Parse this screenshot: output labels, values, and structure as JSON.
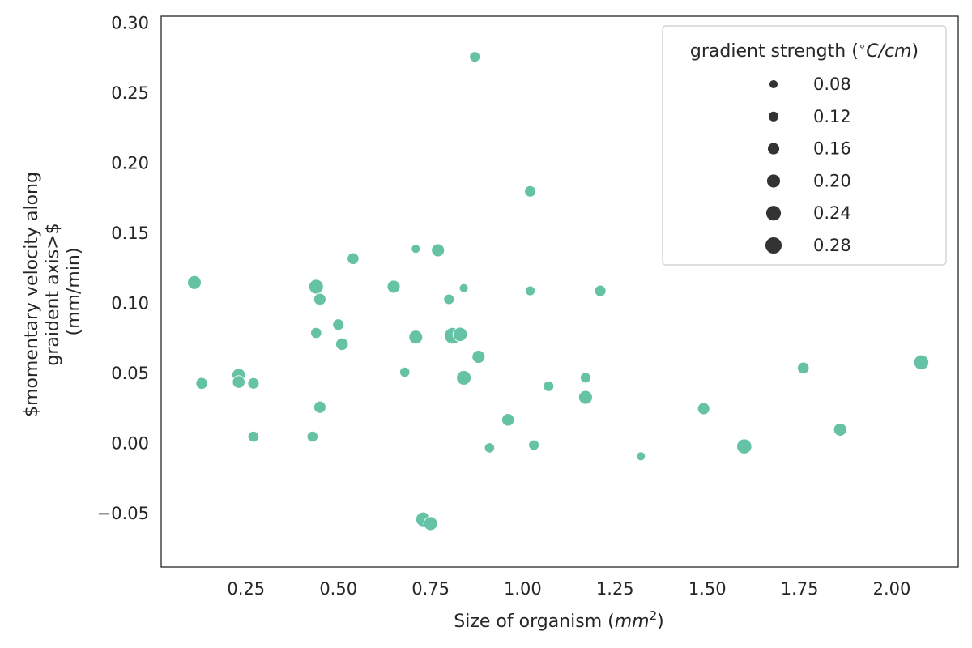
{
  "chart_data": {
    "type": "scatter",
    "title": "",
    "xlabel": "Size of organism (",
    "xlabel_math": "mm",
    "xlabel_sup": "2",
    "xlabel_end": ")",
    "ylabel_lines": [
      "$momentary velocity along",
      "graident axis>$",
      "(mm/min)"
    ],
    "xlim": [
      0.02,
      2.18
    ],
    "ylim": [
      -0.088,
      0.305
    ],
    "xticks": [
      0.25,
      0.5,
      0.75,
      1.0,
      1.25,
      1.5,
      1.75,
      2.0
    ],
    "xtick_labels": [
      "0.25",
      "0.50",
      "0.75",
      "1.00",
      "1.25",
      "1.50",
      "1.75",
      "2.00"
    ],
    "yticks": [
      -0.05,
      0.0,
      0.05,
      0.1,
      0.15,
      0.2,
      0.25,
      0.3
    ],
    "ytick_labels": [
      "−0.05",
      "0.00",
      "0.05",
      "0.10",
      "0.15",
      "0.20",
      "0.25",
      "0.30"
    ],
    "grid": false,
    "marker_color": "#66c2a5",
    "legend": {
      "placement": "top-right",
      "title_prefix": "gradient strength (",
      "title_deg": "∘",
      "title_math": "C/cm",
      "title_suffix": ")",
      "entries": [
        {
          "label": "0.08",
          "size": 0.08
        },
        {
          "label": "0.12",
          "size": 0.12
        },
        {
          "label": "0.16",
          "size": 0.16
        },
        {
          "label": "0.20",
          "size": 0.2
        },
        {
          "label": "0.24",
          "size": 0.24
        },
        {
          "label": "0.28",
          "size": 0.28
        }
      ]
    },
    "points": [
      {
        "x": 0.87,
        "y": 0.276,
        "size": 0.12
      },
      {
        "x": 1.02,
        "y": 0.18,
        "size": 0.14
      },
      {
        "x": 0.71,
        "y": 0.139,
        "size": 0.08
      },
      {
        "x": 0.77,
        "y": 0.138,
        "size": 0.18
      },
      {
        "x": 0.54,
        "y": 0.132,
        "size": 0.15
      },
      {
        "x": 0.11,
        "y": 0.115,
        "size": 0.2
      },
      {
        "x": 0.44,
        "y": 0.112,
        "size": 0.22
      },
      {
        "x": 0.65,
        "y": 0.112,
        "size": 0.18
      },
      {
        "x": 0.84,
        "y": 0.111,
        "size": 0.08
      },
      {
        "x": 1.02,
        "y": 0.109,
        "size": 0.1
      },
      {
        "x": 1.21,
        "y": 0.109,
        "size": 0.14
      },
      {
        "x": 0.45,
        "y": 0.103,
        "size": 0.16
      },
      {
        "x": 0.8,
        "y": 0.103,
        "size": 0.12
      },
      {
        "x": 0.5,
        "y": 0.085,
        "size": 0.14
      },
      {
        "x": 0.44,
        "y": 0.079,
        "size": 0.13
      },
      {
        "x": 0.81,
        "y": 0.077,
        "size": 0.27
      },
      {
        "x": 0.71,
        "y": 0.076,
        "size": 0.2
      },
      {
        "x": 0.83,
        "y": 0.078,
        "size": 0.21
      },
      {
        "x": 0.51,
        "y": 0.071,
        "size": 0.17
      },
      {
        "x": 0.88,
        "y": 0.062,
        "size": 0.18
      },
      {
        "x": 2.08,
        "y": 0.058,
        "size": 0.23
      },
      {
        "x": 1.76,
        "y": 0.054,
        "size": 0.15
      },
      {
        "x": 0.68,
        "y": 0.051,
        "size": 0.11
      },
      {
        "x": 0.23,
        "y": 0.049,
        "size": 0.19
      },
      {
        "x": 0.84,
        "y": 0.047,
        "size": 0.22
      },
      {
        "x": 1.17,
        "y": 0.047,
        "size": 0.12
      },
      {
        "x": 0.23,
        "y": 0.044,
        "size": 0.17
      },
      {
        "x": 0.13,
        "y": 0.043,
        "size": 0.15
      },
      {
        "x": 0.27,
        "y": 0.043,
        "size": 0.14
      },
      {
        "x": 1.07,
        "y": 0.041,
        "size": 0.12
      },
      {
        "x": 1.17,
        "y": 0.033,
        "size": 0.2
      },
      {
        "x": 0.45,
        "y": 0.026,
        "size": 0.16
      },
      {
        "x": 1.49,
        "y": 0.025,
        "size": 0.16
      },
      {
        "x": 0.96,
        "y": 0.017,
        "size": 0.17
      },
      {
        "x": 1.86,
        "y": 0.01,
        "size": 0.18
      },
      {
        "x": 0.27,
        "y": 0.005,
        "size": 0.13
      },
      {
        "x": 0.43,
        "y": 0.005,
        "size": 0.13
      },
      {
        "x": 1.03,
        "y": -0.001,
        "size": 0.12
      },
      {
        "x": 1.6,
        "y": -0.002,
        "size": 0.23
      },
      {
        "x": 0.91,
        "y": -0.003,
        "size": 0.11
      },
      {
        "x": 1.32,
        "y": -0.009,
        "size": 0.08
      },
      {
        "x": 0.73,
        "y": -0.054,
        "size": 0.22
      },
      {
        "x": 0.75,
        "y": -0.057,
        "size": 0.2
      }
    ]
  }
}
